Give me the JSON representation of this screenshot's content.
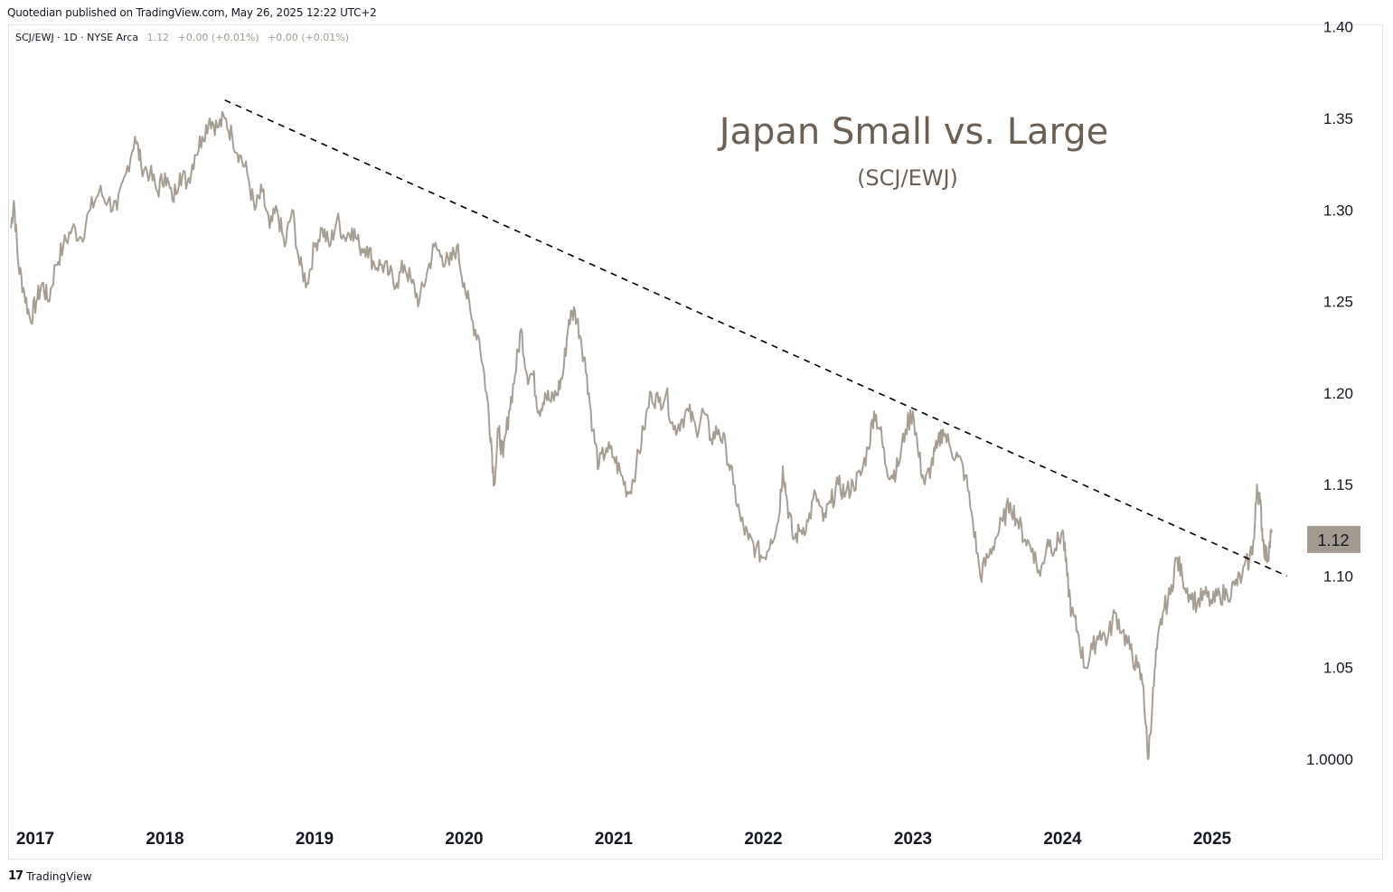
{
  "header": {
    "published": "Quotedian published on TradingView.com, May 26, 2025 12:22 UTC+2"
  },
  "legend": {
    "symbol": "SCJ/EWJ · 1D · NYSE Arca",
    "last": "1.12",
    "change1": "+0.00 (+0.01%)",
    "change2": "+0.00 (+0.01%)"
  },
  "footer": {
    "logo": "17",
    "brand": "TradingView"
  },
  "colors": {
    "series": "#a79e93",
    "trendline": "#000000",
    "price_badge_bg": "#a39b8f",
    "title": "#6b5e53"
  },
  "chart_data": {
    "type": "line",
    "title": "Japan Small vs. Large",
    "subtitle": "(SCJ/EWJ)",
    "current_value_label": "1.12",
    "y_ticks": [
      "1.40",
      "1.35",
      "1.30",
      "1.25",
      "1.20",
      "1.15",
      "1.10",
      "1.05",
      "1.0000"
    ],
    "y_tick_values": [
      1.4,
      1.35,
      1.3,
      1.25,
      1.2,
      1.15,
      1.1,
      1.05,
      1.0
    ],
    "x_ticks": [
      "2017",
      "2018",
      "2019",
      "2020",
      "2021",
      "2022",
      "2023",
      "2024",
      "2025"
    ],
    "x_tick_values": [
      2017,
      2018,
      2019,
      2020,
      2021,
      2022,
      2023,
      2024,
      2025
    ],
    "xlim": [
      2016.95,
      2026.1
    ],
    "ylim": [
      0.97,
      1.4
    ],
    "grid": false,
    "series": [
      {
        "points": [
          [
            2016.97,
            1.29
          ],
          [
            2016.99,
            1.305
          ],
          [
            2017.02,
            1.27
          ],
          [
            2017.06,
            1.255
          ],
          [
            2017.1,
            1.24
          ],
          [
            2017.14,
            1.25
          ],
          [
            2017.18,
            1.26
          ],
          [
            2017.22,
            1.25
          ],
          [
            2017.27,
            1.27
          ],
          [
            2017.32,
            1.28
          ],
          [
            2017.38,
            1.29
          ],
          [
            2017.44,
            1.285
          ],
          [
            2017.5,
            1.3
          ],
          [
            2017.56,
            1.31
          ],
          [
            2017.62,
            1.305
          ],
          [
            2017.68,
            1.3
          ],
          [
            2017.74,
            1.32
          ],
          [
            2017.8,
            1.34
          ],
          [
            2017.84,
            1.325
          ],
          [
            2017.9,
            1.32
          ],
          [
            2017.95,
            1.31
          ],
          [
            2018.0,
            1.32
          ],
          [
            2018.05,
            1.305
          ],
          [
            2018.1,
            1.32
          ],
          [
            2018.15,
            1.315
          ],
          [
            2018.2,
            1.33
          ],
          [
            2018.25,
            1.34
          ],
          [
            2018.3,
            1.35
          ],
          [
            2018.35,
            1.345
          ],
          [
            2018.4,
            1.35
          ],
          [
            2018.45,
            1.34
          ],
          [
            2018.5,
            1.33
          ],
          [
            2018.55,
            1.32
          ],
          [
            2018.6,
            1.3
          ],
          [
            2018.65,
            1.31
          ],
          [
            2018.7,
            1.29
          ],
          [
            2018.75,
            1.3
          ],
          [
            2018.8,
            1.28
          ],
          [
            2018.85,
            1.3
          ],
          [
            2018.9,
            1.27
          ],
          [
            2018.95,
            1.26
          ],
          [
            2019.0,
            1.28
          ],
          [
            2019.05,
            1.29
          ],
          [
            2019.1,
            1.28
          ],
          [
            2019.15,
            1.295
          ],
          [
            2019.2,
            1.285
          ],
          [
            2019.25,
            1.29
          ],
          [
            2019.3,
            1.28
          ],
          [
            2019.35,
            1.28
          ],
          [
            2019.4,
            1.27
          ],
          [
            2019.45,
            1.27
          ],
          [
            2019.5,
            1.265
          ],
          [
            2019.55,
            1.26
          ],
          [
            2019.6,
            1.27
          ],
          [
            2019.65,
            1.26
          ],
          [
            2019.7,
            1.25
          ],
          [
            2019.75,
            1.265
          ],
          [
            2019.8,
            1.28
          ],
          [
            2019.85,
            1.275
          ],
          [
            2019.9,
            1.27
          ],
          [
            2019.95,
            1.28
          ],
          [
            2020.0,
            1.26
          ],
          [
            2020.05,
            1.24
          ],
          [
            2020.1,
            1.23
          ],
          [
            2020.15,
            1.2
          ],
          [
            2020.18,
            1.175
          ],
          [
            2020.2,
            1.15
          ],
          [
            2020.23,
            1.18
          ],
          [
            2020.26,
            1.165
          ],
          [
            2020.3,
            1.19
          ],
          [
            2020.34,
            1.21
          ],
          [
            2020.38,
            1.235
          ],
          [
            2020.42,
            1.21
          ],
          [
            2020.46,
            1.21
          ],
          [
            2020.5,
            1.19
          ],
          [
            2020.54,
            1.2
          ],
          [
            2020.58,
            1.195
          ],
          [
            2020.62,
            1.2
          ],
          [
            2020.66,
            1.21
          ],
          [
            2020.7,
            1.24
          ],
          [
            2020.74,
            1.245
          ],
          [
            2020.78,
            1.23
          ],
          [
            2020.82,
            1.21
          ],
          [
            2020.86,
            1.18
          ],
          [
            2020.9,
            1.16
          ],
          [
            2020.95,
            1.17
          ],
          [
            2021.0,
            1.165
          ],
          [
            2021.05,
            1.155
          ],
          [
            2021.1,
            1.145
          ],
          [
            2021.15,
            1.16
          ],
          [
            2021.2,
            1.18
          ],
          [
            2021.25,
            1.2
          ],
          [
            2021.3,
            1.195
          ],
          [
            2021.35,
            1.2
          ],
          [
            2021.4,
            1.18
          ],
          [
            2021.45,
            1.185
          ],
          [
            2021.5,
            1.19
          ],
          [
            2021.55,
            1.18
          ],
          [
            2021.6,
            1.19
          ],
          [
            2021.65,
            1.175
          ],
          [
            2021.7,
            1.18
          ],
          [
            2021.75,
            1.17
          ],
          [
            2021.8,
            1.15
          ],
          [
            2021.85,
            1.13
          ],
          [
            2021.9,
            1.12
          ],
          [
            2021.95,
            1.115
          ],
          [
            2022.0,
            1.11
          ],
          [
            2022.05,
            1.12
          ],
          [
            2022.1,
            1.13
          ],
          [
            2022.13,
            1.16
          ],
          [
            2022.16,
            1.14
          ],
          [
            2022.2,
            1.12
          ],
          [
            2022.25,
            1.125
          ],
          [
            2022.3,
            1.13
          ],
          [
            2022.35,
            1.145
          ],
          [
            2022.4,
            1.13
          ],
          [
            2022.45,
            1.14
          ],
          [
            2022.5,
            1.15
          ],
          [
            2022.55,
            1.145
          ],
          [
            2022.6,
            1.15
          ],
          [
            2022.65,
            1.155
          ],
          [
            2022.7,
            1.17
          ],
          [
            2022.74,
            1.19
          ],
          [
            2022.78,
            1.18
          ],
          [
            2022.82,
            1.16
          ],
          [
            2022.86,
            1.155
          ],
          [
            2022.9,
            1.16
          ],
          [
            2022.95,
            1.18
          ],
          [
            2023.0,
            1.19
          ],
          [
            2023.04,
            1.165
          ],
          [
            2023.08,
            1.15
          ],
          [
            2023.12,
            1.16
          ],
          [
            2023.16,
            1.17
          ],
          [
            2023.2,
            1.18
          ],
          [
            2023.25,
            1.17
          ],
          [
            2023.3,
            1.165
          ],
          [
            2023.35,
            1.155
          ],
          [
            2023.4,
            1.13
          ],
          [
            2023.45,
            1.1
          ],
          [
            2023.5,
            1.11
          ],
          [
            2023.55,
            1.12
          ],
          [
            2023.6,
            1.13
          ],
          [
            2023.65,
            1.14
          ],
          [
            2023.7,
            1.13
          ],
          [
            2023.75,
            1.12
          ],
          [
            2023.8,
            1.115
          ],
          [
            2023.85,
            1.1
          ],
          [
            2023.9,
            1.12
          ],
          [
            2023.95,
            1.115
          ],
          [
            2024.0,
            1.125
          ],
          [
            2024.03,
            1.1
          ],
          [
            2024.06,
            1.08
          ],
          [
            2024.1,
            1.07
          ],
          [
            2024.15,
            1.05
          ],
          [
            2024.2,
            1.06
          ],
          [
            2024.25,
            1.07
          ],
          [
            2024.3,
            1.065
          ],
          [
            2024.35,
            1.08
          ],
          [
            2024.4,
            1.07
          ],
          [
            2024.45,
            1.06
          ],
          [
            2024.5,
            1.05
          ],
          [
            2024.54,
            1.04
          ],
          [
            2024.57,
            1.0
          ],
          [
            2024.6,
            1.03
          ],
          [
            2024.63,
            1.06
          ],
          [
            2024.67,
            1.08
          ],
          [
            2024.72,
            1.09
          ],
          [
            2024.76,
            1.11
          ],
          [
            2024.8,
            1.1
          ],
          [
            2024.85,
            1.09
          ],
          [
            2024.9,
            1.085
          ],
          [
            2024.95,
            1.09
          ],
          [
            2025.0,
            1.085
          ],
          [
            2025.05,
            1.09
          ],
          [
            2025.1,
            1.09
          ],
          [
            2025.15,
            1.095
          ],
          [
            2025.2,
            1.1
          ],
          [
            2025.25,
            1.11
          ],
          [
            2025.28,
            1.12
          ],
          [
            2025.3,
            1.15
          ],
          [
            2025.32,
            1.14
          ],
          [
            2025.34,
            1.12
          ],
          [
            2025.36,
            1.11
          ],
          [
            2025.38,
            1.115
          ],
          [
            2025.4,
            1.125
          ]
        ]
      }
    ],
    "trendline": {
      "style": "dashed",
      "start": [
        2018.4,
        1.36
      ],
      "end": [
        2025.5,
        1.1
      ]
    }
  }
}
